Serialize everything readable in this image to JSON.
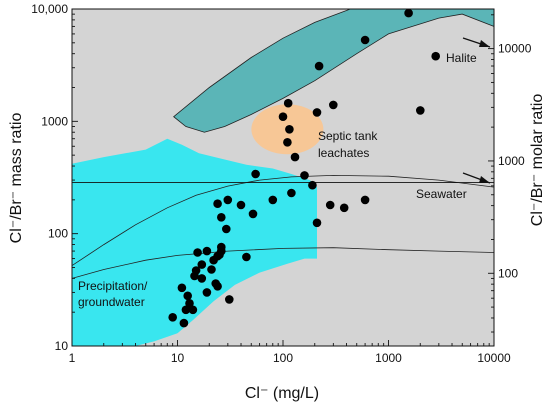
{
  "chart_data": {
    "type": "scatter",
    "xlabel": "Cl⁻ (mg/L)",
    "ylabel": "Cl⁻/Br⁻ mass ratio",
    "y2label": "Cl⁻/Br⁻ molar ratio",
    "xscale": "log",
    "yscale": "log",
    "xlim": [
      1,
      10000
    ],
    "ylim": [
      10,
      10000
    ],
    "y2_factor": 0.444,
    "x_ticks": [
      "1",
      "10",
      "100",
      "1000",
      "10000"
    ],
    "y_ticks": [
      "10",
      "100",
      "1000",
      "10,000"
    ],
    "y2_ticks": [
      "100",
      "1000",
      "10000"
    ],
    "grid": false,
    "colors": {
      "plot_bg": "#d4d4d4",
      "precip_field": "#39e6ef",
      "halite_band": "#5bb5b7",
      "septic_field": "#f7c796",
      "points": "#000000"
    },
    "annotations": {
      "halite": "Halite",
      "septic_line1": "Septic tank",
      "septic_line2": "leachates",
      "seawater": "Seawater",
      "precip_line1": "Precipitation/",
      "precip_line2": "groundwater"
    },
    "points": [
      [
        9,
        18
      ],
      [
        11,
        33
      ],
      [
        11.5,
        16
      ],
      [
        12,
        21
      ],
      [
        12.5,
        28
      ],
      [
        13,
        24
      ],
      [
        14,
        21
      ],
      [
        14.5,
        42
      ],
      [
        15,
        47
      ],
      [
        15.5,
        68
      ],
      [
        17,
        53
      ],
      [
        17,
        40
      ],
      [
        19,
        70
      ],
      [
        19,
        30
      ],
      [
        21,
        48
      ],
      [
        22,
        58
      ],
      [
        23,
        36
      ],
      [
        24,
        34
      ],
      [
        24,
        63
      ],
      [
        24,
        185
      ],
      [
        25,
        65
      ],
      [
        26,
        140
      ],
      [
        26,
        70
      ],
      [
        26,
        76
      ],
      [
        29,
        110
      ],
      [
        30,
        200
      ],
      [
        31,
        26
      ],
      [
        40,
        180
      ],
      [
        45,
        62
      ],
      [
        52,
        150
      ],
      [
        55,
        340
      ],
      [
        80,
        200
      ],
      [
        100,
        1100
      ],
      [
        110,
        650
      ],
      [
        112,
        1450
      ],
      [
        115,
        850
      ],
      [
        120,
        230
      ],
      [
        130,
        480
      ],
      [
        160,
        330
      ],
      [
        190,
        270
      ],
      [
        210,
        125
      ],
      [
        210,
        1200
      ],
      [
        220,
        3100
      ],
      [
        280,
        180
      ],
      [
        300,
        1400
      ],
      [
        380,
        170
      ],
      [
        600,
        5300
      ],
      [
        600,
        200
      ],
      [
        1550,
        9200
      ],
      [
        2000,
        1250
      ],
      [
        2800,
        3800
      ]
    ]
  }
}
